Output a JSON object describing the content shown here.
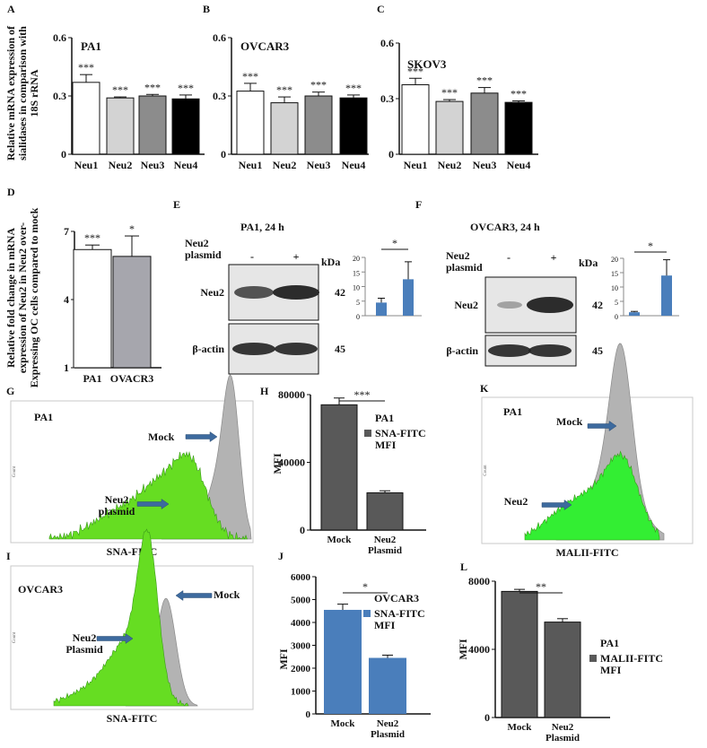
{
  "figure": {
    "panels": {
      "A": "A",
      "B": "B",
      "C": "C",
      "D": "D",
      "E": "E",
      "F": "F",
      "G": "G",
      "H": "H",
      "I": "I",
      "J": "J",
      "K": "K",
      "L": "L"
    },
    "blots": {
      "E": {
        "title": "PA1, 24 h",
        "plasmid_label": [
          "Neu2",
          "plasmid"
        ],
        "minus": "-",
        "plus": "+",
        "kda": "kDa",
        "bands": [
          {
            "label": "Neu2",
            "kda": "42"
          },
          {
            "label": "β-actin",
            "kda": "45"
          }
        ]
      },
      "F": {
        "title": "OVCAR3, 24 h",
        "plasmid_label": [
          "Neu2",
          "plasmid"
        ],
        "minus": "-",
        "plus": "+",
        "kda": "kDa",
        "bands": [
          {
            "label": "Neu2",
            "kda": "42"
          },
          {
            "label": "β-actin",
            "kda": "45"
          }
        ]
      }
    },
    "histograms": {
      "G": {
        "cell": "PA1",
        "xlabel": "SNA-FITC",
        "ylabel": "Count",
        "mock": "Mock",
        "neu2": [
          "Neu2",
          "plasmid"
        ],
        "colors": {
          "mock": "#b3b3b3",
          "neu2": "#66dd22"
        }
      },
      "I": {
        "cell": "OVCAR3",
        "xlabel": "SNA-FITC",
        "ylabel": "Count",
        "mock": "Mock",
        "neu2": [
          "Neu2",
          "Plasmid"
        ],
        "colors": {
          "mock": "#b3b3b3",
          "neu2": "#66dd22"
        }
      },
      "K": {
        "cell": "PA1",
        "xlabel": "MALII-FITC",
        "ylabel": "Count",
        "mock": "Mock",
        "neu2": [
          "Neu2"
        ],
        "colors": {
          "mock": "#b3b3b3",
          "neu2": "#33ee33"
        }
      }
    },
    "arrow_color": "#3d6a9e"
  },
  "chart_data": [
    {
      "id": "A",
      "type": "bar",
      "inset_title": "PA1",
      "ylabel": [
        "Relative mRNA expression of",
        "sialidases in comparison with",
        "18S rRNA"
      ],
      "categories": [
        "Neu1",
        "Neu2",
        "Neu3",
        "Neu4"
      ],
      "values": [
        0.37,
        0.29,
        0.3,
        0.285
      ],
      "errors": [
        0.04,
        0.005,
        0.008,
        0.02
      ],
      "sig": [
        "***",
        "***",
        "***",
        "***"
      ],
      "colors": [
        "#ffffff",
        "#d3d3d3",
        "#8c8c8c",
        "#000000"
      ],
      "ylim": [
        0,
        0.6
      ],
      "yticks": [
        "0",
        "0.3",
        "0.6"
      ]
    },
    {
      "id": "B",
      "type": "bar",
      "inset_title": "OVCAR3",
      "categories": [
        "Neu1",
        "Neu2",
        "Neu3",
        "Neu4"
      ],
      "values": [
        0.325,
        0.265,
        0.3,
        0.29
      ],
      "errors": [
        0.04,
        0.03,
        0.02,
        0.015
      ],
      "sig": [
        "***",
        "***",
        "***",
        "***"
      ],
      "colors": [
        "#ffffff",
        "#d3d3d3",
        "#8c8c8c",
        "#000000"
      ],
      "ylim": [
        0,
        0.6
      ],
      "yticks": [
        "0",
        "0.3",
        "0.6"
      ]
    },
    {
      "id": "C",
      "type": "bar",
      "inset_title": "SKOV3",
      "categories": [
        "Neu1",
        "Neu2",
        "Neu3",
        "Neu4"
      ],
      "values": [
        0.375,
        0.285,
        0.33,
        0.28
      ],
      "errors": [
        0.035,
        0.01,
        0.03,
        0.008
      ],
      "sig": [
        "***",
        "***",
        "***",
        "***"
      ],
      "colors": [
        "#ffffff",
        "#d3d3d3",
        "#8c8c8c",
        "#000000"
      ],
      "ylim": [
        0,
        0.6
      ],
      "yticks": [
        "0",
        "0.3",
        "0.6"
      ]
    },
    {
      "id": "D",
      "type": "bar",
      "ylabel": [
        "Relative fold change in mRNA",
        "expression of Neu2 in Neu2 over-",
        "Expressing OC cells compared to mock"
      ],
      "categories": [
        "PA1",
        "OVACR3"
      ],
      "values": [
        6.2,
        5.9
      ],
      "errors": [
        0.2,
        0.9
      ],
      "sig": [
        "***",
        "*"
      ],
      "colors": [
        "#ffffff",
        "#a6a6ad"
      ],
      "ylim": [
        1,
        7
      ],
      "yticks": [
        "1",
        "4",
        "7"
      ]
    },
    {
      "id": "E-inset",
      "type": "bar",
      "values": [
        4.5,
        12.5
      ],
      "errors": [
        1.5,
        6
      ],
      "sig": [
        "*"
      ],
      "colors": [
        "#4a7ebb",
        "#4a7ebb"
      ],
      "ylim": [
        0,
        20
      ],
      "yticks": [
        "0",
        "5",
        "10",
        "15",
        "20"
      ]
    },
    {
      "id": "F-inset",
      "type": "bar",
      "values": [
        1.2,
        14
      ],
      "errors": [
        0.3,
        5.5
      ],
      "sig": [
        "*"
      ],
      "colors": [
        "#4a7ebb",
        "#4a7ebb"
      ],
      "ylim": [
        0,
        20
      ],
      "yticks": [
        "0",
        "5",
        "10",
        "15",
        "20"
      ]
    },
    {
      "id": "H",
      "type": "bar",
      "ylabel": "MFI",
      "categories": [
        [
          "Mock"
        ],
        [
          "Neu2",
          "Plasmid"
        ]
      ],
      "values": [
        74000,
        22000
      ],
      "errors": [
        4000,
        1200
      ],
      "sig": [
        "***"
      ],
      "colors": [
        "#595959",
        "#595959"
      ],
      "legend": {
        "title": "PA1",
        "entry": [
          "SNA-FITC",
          "MFI"
        ]
      },
      "ylim": [
        0,
        80000
      ],
      "yticks": [
        "0",
        "40000",
        "80000"
      ]
    },
    {
      "id": "J",
      "type": "bar",
      "ylabel": "MFI",
      "categories": [
        [
          "Mock"
        ],
        [
          "Neu2",
          "Plasmid"
        ]
      ],
      "values": [
        4550,
        2450
      ],
      "errors": [
        250,
        120
      ],
      "sig": [
        "*"
      ],
      "colors": [
        "#4a7ebb",
        "#4a7ebb"
      ],
      "legend": {
        "title": "OVCAR3",
        "entry": [
          "SNA-FITC",
          "MFI"
        ]
      },
      "ylim": [
        0,
        6000
      ],
      "yticks": [
        "0",
        "1000",
        "2000",
        "3000",
        "4000",
        "5000",
        "6000"
      ]
    },
    {
      "id": "L",
      "type": "bar",
      "ylabel": "MFI",
      "categories": [
        [
          "Mock"
        ],
        [
          "Neu2",
          "Plasmid"
        ]
      ],
      "values": [
        7400,
        5600
      ],
      "errors": [
        120,
        200
      ],
      "sig": [
        "**"
      ],
      "colors": [
        "#595959",
        "#595959"
      ],
      "legend": {
        "title": "PA1",
        "entry": [
          "MALII-FITC",
          "MFI"
        ]
      },
      "ylim": [
        0,
        8000
      ],
      "yticks": [
        "0",
        "4000",
        "8000"
      ]
    }
  ]
}
